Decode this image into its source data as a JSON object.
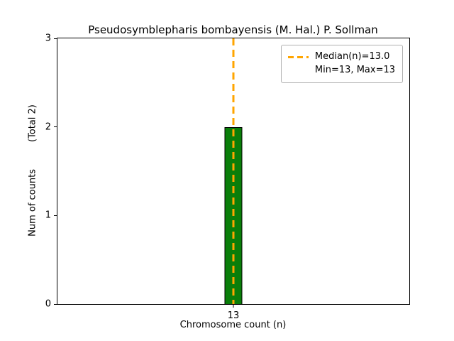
{
  "chart_data": {
    "type": "bar",
    "title": "Pseudosymblepharis bombayensis (M. Hal.) P. Sollman",
    "xlabel": "Chromosome count (n)",
    "ylabel": "Num of counts",
    "ylabel_total": "(Total 2)",
    "categories": [
      "13"
    ],
    "values": [
      2
    ],
    "ylim": [
      0,
      3
    ],
    "yticks": [
      0,
      1,
      2,
      3
    ],
    "median": 13.0,
    "min": 13,
    "max": 13,
    "bar_color": "#0a7e0a",
    "bar_edge_color": "#000000",
    "median_line_color": "#ffa500",
    "legend_position": "upper right",
    "grid": false,
    "legend": [
      {
        "label": "Median(n)=13.0",
        "handle": "dashed-line"
      },
      {
        "label": "Min=13, Max=13",
        "handle": "none"
      }
    ]
  }
}
